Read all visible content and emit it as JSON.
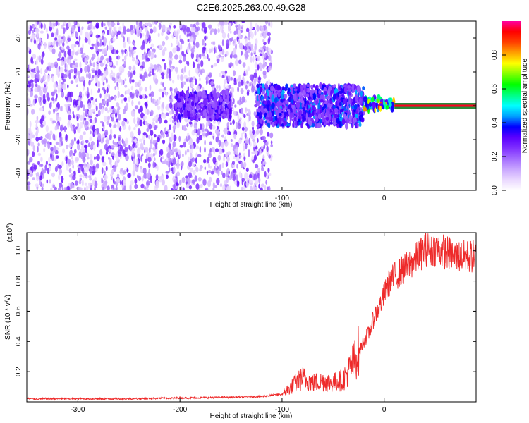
{
  "title": "C2E6.2025.263.00.49.G28",
  "chart_data": [
    {
      "type": "heatmap",
      "xlabel": "Height of straight line (km)",
      "ylabel": "Frequency (Hz)",
      "xlim": [
        -350,
        90
      ],
      "ylim": [
        -50,
        50
      ],
      "xticks": [
        -300,
        -200,
        -100,
        0
      ],
      "yticks": [
        -40,
        -20,
        0,
        20,
        40
      ],
      "colorbar": {
        "label": "Normalized spectral amplitude",
        "ticks": [
          0.0,
          0.2,
          0.4,
          0.6,
          0.8
        ],
        "range": [
          0,
          1
        ],
        "colors": [
          "#ffffff",
          "#e9d7ff",
          "#c9a6ff",
          "#a36bff",
          "#7f2fff",
          "#5a00ff",
          "#0000ff",
          "#00a0ff",
          "#00ffff",
          "#00ff80",
          "#00ff00",
          "#80ff00",
          "#ffff00",
          "#ffa000",
          "#ff4000",
          "#ff0000",
          "#ff00a0"
        ]
      },
      "regions": [
        {
          "x_range": [
            -350,
            -110
          ],
          "y_range": [
            -50,
            50
          ],
          "level": [
            0.05,
            0.3
          ]
        },
        {
          "x_range": [
            -205,
            -150
          ],
          "y_range": [
            -8,
            8
          ],
          "level": [
            0.2,
            0.35
          ]
        },
        {
          "x_range": [
            -125,
            -20
          ],
          "y_range": [
            -12,
            12
          ],
          "level": [
            0.2,
            0.45
          ]
        },
        {
          "x_range": [
            -20,
            10
          ],
          "y_range": [
            -3,
            5
          ],
          "level": [
            0.3,
            0.9
          ]
        }
      ],
      "tone_line": {
        "x_range": [
          10,
          90
        ],
        "y": 0,
        "level": 0.95
      }
    },
    {
      "type": "line",
      "xlabel": "Height of straight line (km)",
      "ylabel": "SNR (10 * v/v)",
      "y_multiplier": "(x10",
      "y_multiplier_exp": "4",
      "y_multiplier_close": ")",
      "xlim": [
        -350,
        90
      ],
      "ylim": [
        0,
        1.12
      ],
      "xticks": [
        -300,
        -200,
        -100,
        0
      ],
      "yticks": [
        0.2,
        0.4,
        0.6,
        0.8,
        1.0
      ],
      "color": "#ee2a2a",
      "series": [
        {
          "x": [
            -350,
            -300,
            -250,
            -200,
            -150,
            -120,
            -100,
            -90,
            -80,
            -70,
            -60,
            -50,
            -40,
            -30,
            -25,
            -20,
            -15,
            -10,
            -5,
            0,
            5,
            10,
            20,
            30,
            40,
            50,
            60,
            70,
            80,
            90
          ],
          "y": [
            0.02,
            0.02,
            0.02,
            0.025,
            0.03,
            0.035,
            0.05,
            0.1,
            0.15,
            0.12,
            0.13,
            0.12,
            0.14,
            0.25,
            0.32,
            0.4,
            0.45,
            0.55,
            0.62,
            0.7,
            0.78,
            0.82,
            0.87,
            0.93,
            1.0,
            1.0,
            0.98,
            0.95,
            0.95,
            0.95
          ]
        }
      ]
    }
  ]
}
